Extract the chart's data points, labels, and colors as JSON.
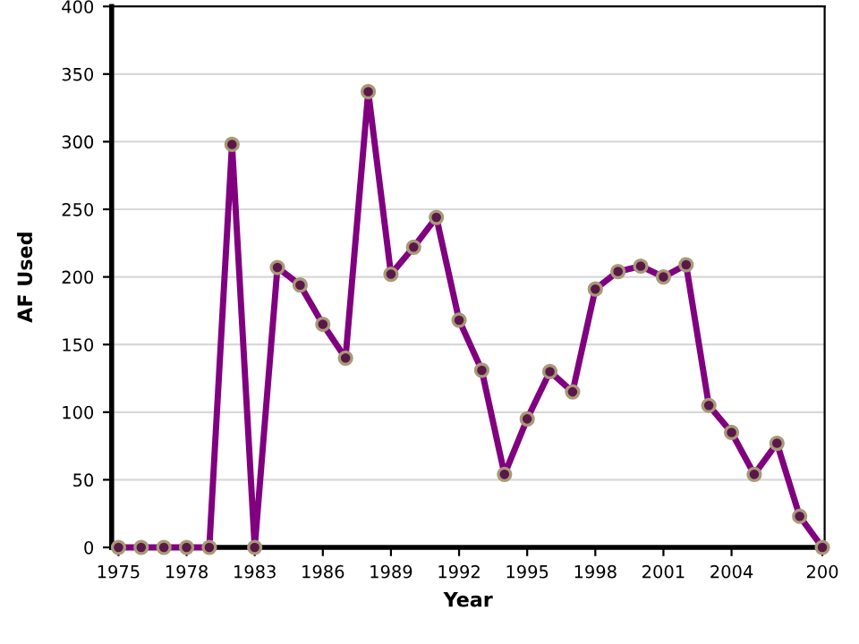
{
  "chart_data": {
    "type": "line",
    "xlabel": "Year",
    "ylabel": "AF Used",
    "categories": [
      "1975",
      null,
      null,
      "1978",
      null,
      null,
      "1983",
      null,
      null,
      "1986",
      null,
      null,
      "1989",
      null,
      null,
      "1992",
      null,
      null,
      "1995",
      null,
      null,
      "1998",
      null,
      null,
      "2001",
      null,
      null,
      "2004",
      null,
      null,
      null,
      "200"
    ],
    "series": [
      {
        "color": "#800080",
        "values": [
          0,
          0,
          0,
          0,
          0,
          298,
          0,
          207,
          194,
          165,
          140,
          337,
          202,
          222,
          244,
          168,
          131,
          54,
          95,
          130,
          115,
          191,
          204,
          208,
          200,
          209,
          105,
          85,
          54,
          77,
          23,
          0
        ]
      }
    ],
    "ylim": [
      0,
      400
    ],
    "yticks": [
      0,
      50,
      100,
      150,
      200,
      250,
      300,
      350,
      400
    ],
    "grid": "y",
    "marker": "circle",
    "line_style": "solid"
  }
}
